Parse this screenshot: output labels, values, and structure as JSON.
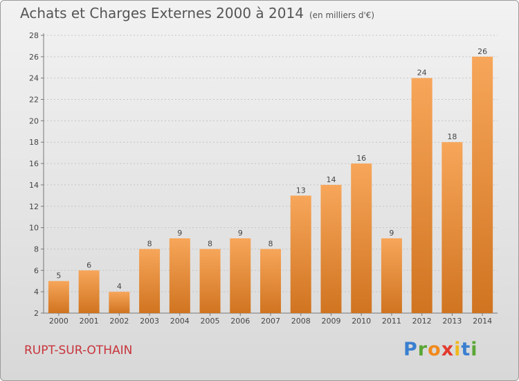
{
  "header": {
    "title": "Achats et Charges Externes 2000 à 2014",
    "unit": "(en milliers d'€)"
  },
  "footer": {
    "commune": "RUPT-SUR-OTHAIN",
    "logo": "Proxiti"
  },
  "colors": {
    "bar_top": "#f7a65a",
    "bar_bottom": "#d07420",
    "commune_text": "#c8343c",
    "logo_letters": [
      "#3a7fd0",
      "#5aa636",
      "#f08a1c",
      "#e23a2e",
      "#f0b81c",
      "#3a7fd0",
      "#5aa636"
    ]
  },
  "chart_data": {
    "type": "bar",
    "title": "Achats et Charges Externes 2000 à 2014",
    "subtitle": "(en milliers d'€)",
    "categories": [
      "2000",
      "2001",
      "2002",
      "2003",
      "2004",
      "2005",
      "2006",
      "2007",
      "2008",
      "2009",
      "2010",
      "2011",
      "2012",
      "2013",
      "2014"
    ],
    "values": [
      5,
      6,
      4,
      8,
      9,
      8,
      9,
      8,
      13,
      14,
      16,
      9,
      24,
      18,
      26
    ],
    "data_labels": [
      "5",
      "6",
      "4",
      "8",
      "9",
      "8",
      "9",
      "8",
      "13",
      "14",
      "16",
      "9",
      "24",
      "18",
      "26"
    ],
    "ylim": [
      2,
      28
    ],
    "yticks": [
      "2",
      "4",
      "6",
      "8",
      "10",
      "12",
      "14",
      "16",
      "18",
      "20",
      "22",
      "24",
      "26",
      "28"
    ],
    "grid": "horizontal-dotted",
    "xlabel": "",
    "ylabel": ""
  }
}
